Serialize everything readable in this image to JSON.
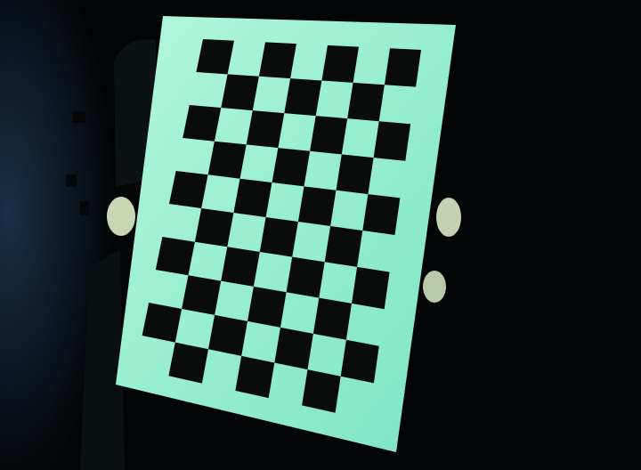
{
  "scene": {
    "subject": "checkerboard-calibration-target",
    "background": "dark-room",
    "board": {
      "rows": 10,
      "cols": 7,
      "paper_color": "#9ff2d4",
      "paper_edge_color": "#7fe0c8",
      "square_color": "#0a0c0c",
      "pattern": "alternating"
    },
    "colors": {
      "background": "#030405",
      "left_wall": "#0d1a26",
      "hand": "#c8d6b4",
      "person": "#0a0f12"
    }
  }
}
